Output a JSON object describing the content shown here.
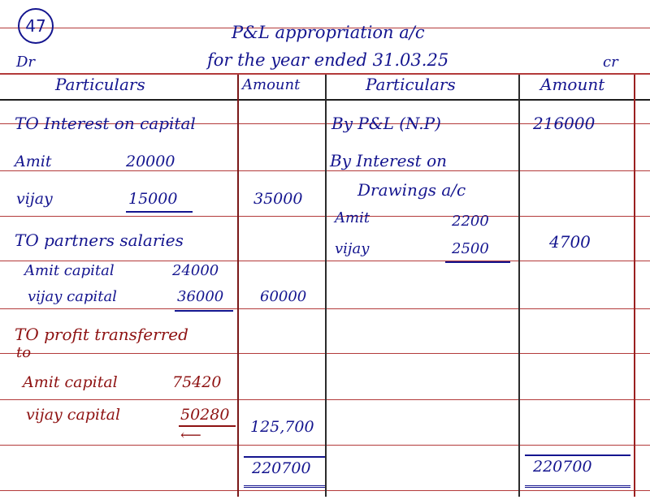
{
  "header": {
    "question_number": "47",
    "title_line1": "P&L appropriation a/c",
    "title_line2": "for the year ended 31.03.25",
    "dr": "Dr",
    "cr": "cr"
  },
  "columns": {
    "particulars_left": "Particulars",
    "amount_left": "Amount",
    "particulars_right": "Particulars",
    "amount_right": "Amount"
  },
  "debit": {
    "interest_heading": "TO Interest on capital",
    "interest_amit_name": "Amit",
    "interest_amit_value": "20000",
    "interest_vijay_name": "vijay",
    "interest_vijay_value": "15000",
    "interest_total": "35000",
    "salaries_heading": "TO partners salaries",
    "salary_amit_label": "Amit capital",
    "salary_amit_value": "24000",
    "salary_vijay_label": "vijay capital",
    "salary_vijay_value": "36000",
    "salaries_total": "60000",
    "profit_heading_line1": "TO profit transferred",
    "profit_heading_line2": "to",
    "profit_amit_label": "Amit capital",
    "profit_amit_value": "75420",
    "profit_vijay_label": "vijay capital",
    "profit_vijay_value": "50280",
    "profit_total": "125,700",
    "grand_total": "220700"
  },
  "credit": {
    "pl_label": "By P&L (N.P)",
    "pl_value": "216000",
    "interest_drawings_line1": "By Interest on",
    "interest_drawings_line2": "Drawings a/c",
    "amit_name": "Amit",
    "amit_value": "2200",
    "vijay_name": "vijay",
    "vijay_value": "2500",
    "drawings_total": "4700",
    "grand_total": "220700"
  }
}
